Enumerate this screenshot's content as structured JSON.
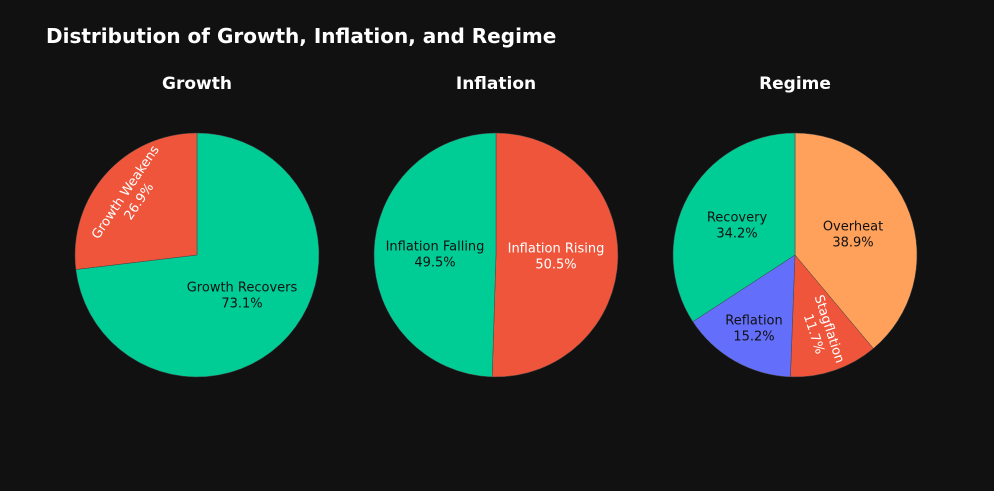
{
  "title": "Distribution of Growth, Inflation, and Regime",
  "chart_data": [
    {
      "type": "pie",
      "title": "Growth",
      "slices": [
        {
          "label": "Growth Recovers",
          "value": 73.1,
          "percent": "73.1%",
          "color": "#00cc96",
          "text_color": "#111111"
        },
        {
          "label": "Growth Weakens",
          "value": 26.9,
          "percent": "26.9%",
          "color": "#ef553b",
          "text_color": "#ffffff"
        }
      ]
    },
    {
      "type": "pie",
      "title": "Inflation",
      "slices": [
        {
          "label": "Inflation Rising",
          "value": 50.5,
          "percent": "50.5%",
          "color": "#ef553b",
          "text_color": "#ffffff"
        },
        {
          "label": "Inflation Falling",
          "value": 49.5,
          "percent": "49.5%",
          "color": "#00cc96",
          "text_color": "#111111"
        }
      ]
    },
    {
      "type": "pie",
      "title": "Regime",
      "slices": [
        {
          "label": "Overheat",
          "value": 38.9,
          "percent": "38.9%",
          "color": "#ffa15a",
          "text_color": "#111111"
        },
        {
          "label": "Stagflation",
          "value": 11.7,
          "percent": "11.7%",
          "color": "#ef553b",
          "text_color": "#ffffff"
        },
        {
          "label": "Reflation",
          "value": 15.2,
          "percent": "15.2%",
          "color": "#636efa",
          "text_color": "#111111"
        },
        {
          "label": "Recovery",
          "value": 34.2,
          "percent": "34.2%",
          "color": "#00cc96",
          "text_color": "#111111"
        }
      ]
    }
  ]
}
